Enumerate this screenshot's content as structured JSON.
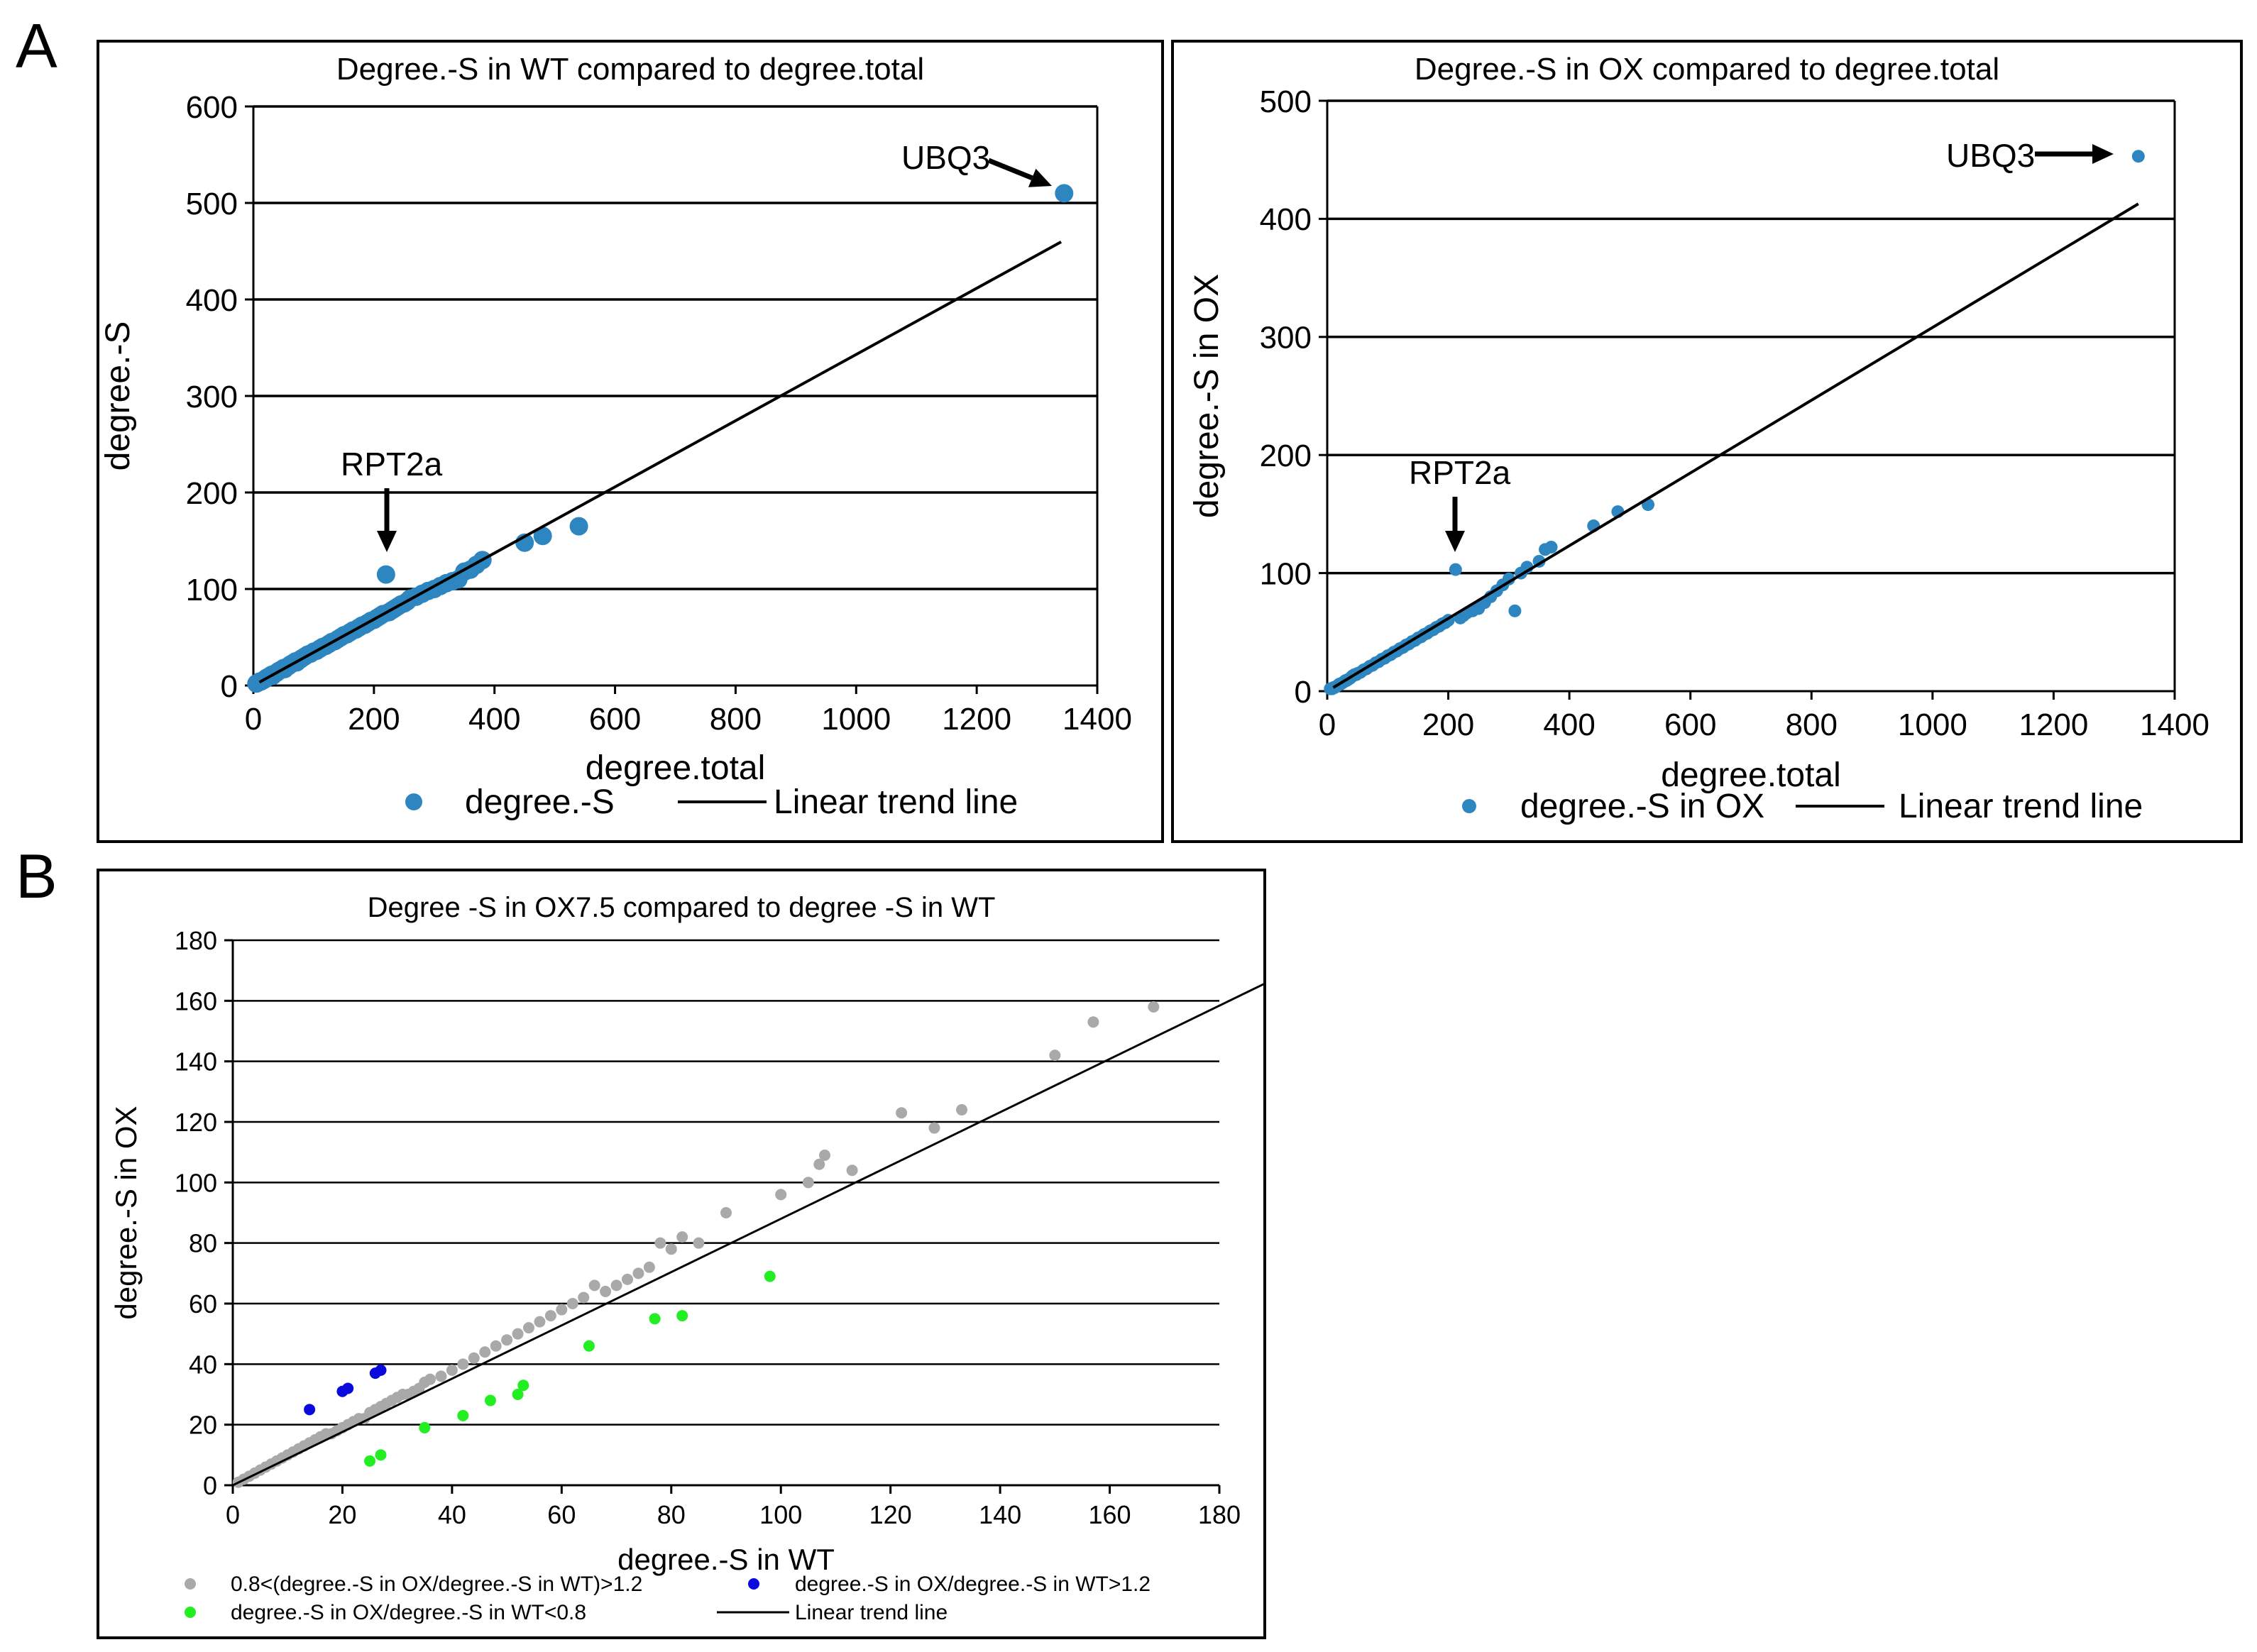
{
  "panel_labels": {
    "a": "A",
    "b": "B"
  },
  "chart_data": [
    {
      "type": "scatter",
      "title": "Degree.-S in WT compared to degree.total",
      "xlabel": "degree.total",
      "ylabel": "degree.-S",
      "xlim": [
        0,
        1400
      ],
      "ylim": [
        0,
        600
      ],
      "xticks": [
        0,
        200,
        400,
        600,
        800,
        1000,
        1200,
        1400
      ],
      "yticks": [
        0,
        100,
        200,
        300,
        400,
        500,
        600
      ],
      "grid": "horizontal",
      "colors": {
        "points": "#2e86c1"
      },
      "legend": {
        "points": "degree.-S",
        "trend": "Linear trend line"
      },
      "trendline": {
        "slope": 0.343,
        "intercept": 0,
        "x_range": [
          10,
          1340
        ]
      },
      "annotations": [
        {
          "text": "UBQ3",
          "x": 1345,
          "y": 510
        },
        {
          "text": "RPT2a",
          "x": 220,
          "y": 115
        }
      ],
      "series": [
        {
          "name": "degree.-S",
          "x": [
            5,
            8,
            10,
            12,
            15,
            18,
            20,
            22,
            25,
            28,
            30,
            32,
            35,
            38,
            40,
            42,
            45,
            48,
            50,
            52,
            55,
            58,
            60,
            62,
            65,
            68,
            70,
            72,
            75,
            78,
            80,
            85,
            90,
            95,
            100,
            105,
            110,
            115,
            120,
            125,
            130,
            135,
            140,
            145,
            150,
            155,
            160,
            165,
            170,
            175,
            180,
            185,
            190,
            195,
            200,
            205,
            210,
            215,
            220,
            225,
            230,
            235,
            240,
            245,
            250,
            255,
            260,
            270,
            280,
            290,
            300,
            310,
            320,
            330,
            340,
            350,
            360,
            370,
            380,
            450,
            480,
            540,
            1345
          ],
          "y": [
            2,
            3,
            4,
            4,
            5,
            6,
            7,
            8,
            9,
            10,
            11,
            10,
            12,
            13,
            14,
            15,
            16,
            17,
            18,
            17,
            19,
            20,
            21,
            22,
            23,
            24,
            25,
            24,
            26,
            27,
            28,
            30,
            32,
            33,
            35,
            36,
            38,
            40,
            41,
            43,
            45,
            46,
            48,
            50,
            52,
            53,
            55,
            57,
            58,
            60,
            62,
            63,
            65,
            67,
            68,
            70,
            72,
            74,
            115,
            76,
            78,
            80,
            82,
            84,
            85,
            87,
            90,
            92,
            95,
            98,
            100,
            103,
            106,
            108,
            110,
            118,
            120,
            125,
            130,
            148,
            155,
            165,
            510
          ]
        }
      ]
    },
    {
      "type": "scatter",
      "title": "Degree.-S in OX compared to degree.total",
      "xlabel": "degree.total",
      "ylabel": "degree.-S in OX",
      "xlim": [
        0,
        1400
      ],
      "ylim": [
        0,
        500
      ],
      "xticks": [
        0,
        200,
        400,
        600,
        800,
        1000,
        1200,
        1400
      ],
      "yticks": [
        0,
        100,
        200,
        300,
        400,
        500
      ],
      "grid": "horizontal",
      "colors": {
        "points": "#2e86c1"
      },
      "legend": {
        "points": "degree.-S in OX",
        "trend": "Linear trend line"
      },
      "trendline": {
        "slope": 0.308,
        "intercept": 0,
        "x_range": [
          10,
          1340
        ]
      },
      "annotations": [
        {
          "text": "UBQ3",
          "x": 1340,
          "y": 453
        },
        {
          "text": "RPT2a",
          "x": 212,
          "y": 103
        }
      ],
      "series": [
        {
          "name": "degree.-S in OX",
          "x": [
            5,
            8,
            10,
            12,
            15,
            18,
            20,
            22,
            25,
            28,
            30,
            32,
            35,
            38,
            40,
            42,
            45,
            48,
            50,
            55,
            60,
            65,
            70,
            75,
            80,
            85,
            90,
            95,
            100,
            105,
            110,
            115,
            120,
            125,
            130,
            135,
            140,
            145,
            150,
            155,
            160,
            165,
            170,
            175,
            180,
            185,
            190,
            195,
            200,
            212,
            220,
            225,
            230,
            240,
            250,
            260,
            270,
            280,
            290,
            300,
            310,
            320,
            330,
            350,
            360,
            370,
            440,
            480,
            530,
            1340
          ],
          "y": [
            2,
            2,
            3,
            3,
            4,
            5,
            6,
            6,
            7,
            8,
            9,
            9,
            10,
            11,
            12,
            13,
            14,
            14,
            15,
            16,
            18,
            19,
            21,
            22,
            24,
            25,
            27,
            28,
            30,
            31,
            33,
            34,
            36,
            37,
            39,
            40,
            42,
            43,
            45,
            46,
            48,
            49,
            51,
            52,
            54,
            55,
            57,
            58,
            60,
            103,
            62,
            64,
            66,
            68,
            70,
            75,
            80,
            85,
            90,
            95,
            68,
            100,
            105,
            110,
            120,
            122,
            140,
            152,
            158,
            453
          ]
        }
      ]
    },
    {
      "type": "scatter",
      "title": "Degree -S in OX7.5 compared to degree -S in WT",
      "xlabel": "degree.-S in WT",
      "ylabel": "degree.-S in OX",
      "xlim": [
        0,
        180
      ],
      "ylim": [
        0,
        180
      ],
      "xticks": [
        0,
        20,
        40,
        60,
        80,
        100,
        120,
        140,
        160,
        180
      ],
      "yticks": [
        0,
        20,
        40,
        60,
        80,
        100,
        120,
        140,
        160,
        180
      ],
      "grid": "horizontal",
      "trendline": {
        "slope": 0.88,
        "intercept": 0,
        "x_range": [
          0,
          188
        ]
      },
      "legend": {
        "gray": "0.8<(degree.-S in OX/degree.-S in WT)>1.2",
        "blue": "degree.-S in OX/degree.-S in WT>1.2",
        "green": "degree.-S in OX/degree.-S in WT<0.8",
        "trend": "Linear trend line"
      },
      "series": [
        {
          "name": "0.8<(degree.-S in OX/degree.-S in WT)>1.2",
          "color": "#a9a9a9",
          "x": [
            1,
            2,
            3,
            4,
            5,
            6,
            7,
            8,
            9,
            10,
            11,
            12,
            13,
            14,
            15,
            16,
            17,
            18,
            19,
            20,
            21,
            22,
            23,
            24,
            25,
            26,
            27,
            28,
            29,
            30,
            31,
            32,
            33,
            34,
            35,
            36,
            38,
            40,
            42,
            44,
            46,
            48,
            50,
            52,
            54,
            56,
            58,
            60,
            62,
            64,
            66,
            68,
            70,
            72,
            74,
            76,
            78,
            80,
            82,
            85,
            90,
            100,
            105,
            107,
            108,
            113,
            122,
            128,
            133,
            150,
            157,
            168
          ],
          "y": [
            1,
            2,
            3,
            4,
            5,
            6,
            7,
            8,
            9,
            10,
            11,
            12,
            13,
            14,
            15,
            16,
            17,
            17,
            18,
            19,
            20,
            21,
            22,
            22,
            24,
            25,
            26,
            27,
            28,
            29,
            30,
            30,
            31,
            32,
            34,
            35,
            36,
            38,
            40,
            42,
            44,
            46,
            48,
            50,
            52,
            54,
            56,
            58,
            60,
            62,
            66,
            64,
            66,
            68,
            70,
            72,
            80,
            78,
            82,
            80,
            90,
            96,
            100,
            106,
            109,
            104,
            123,
            118,
            124,
            142,
            153,
            158
          ]
        },
        {
          "name": "degree.-S in OX/degree.-S in WT>1.2",
          "color": "#0a0adc",
          "x": [
            14,
            20,
            21,
            26,
            27
          ],
          "y": [
            25,
            31,
            32,
            37,
            38
          ]
        },
        {
          "name": "degree.-S in OX/degree.-S in WT<0.8",
          "color": "#22ee22",
          "x": [
            25,
            27,
            35,
            42,
            47,
            52,
            53,
            65,
            77,
            82,
            98
          ],
          "y": [
            8,
            10,
            19,
            23,
            28,
            30,
            33,
            46,
            55,
            56,
            69
          ]
        }
      ]
    }
  ]
}
